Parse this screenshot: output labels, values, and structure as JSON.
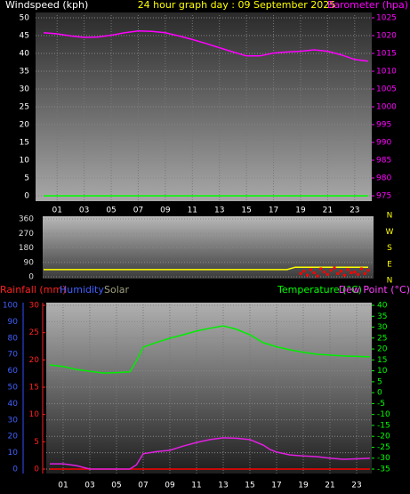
{
  "chart_data": [
    {
      "type": "line",
      "title": "24 hour graph day : 09 September 2025",
      "y_label": "Windspeed (kph)",
      "y2_label": "Barometer (hpa)",
      "xlim": [
        0,
        24
      ],
      "xticks": [
        {
          "value": 1,
          "label": "01"
        },
        {
          "value": 3,
          "label": "03"
        },
        {
          "value": 5,
          "label": "05"
        },
        {
          "value": 7,
          "label": "07"
        },
        {
          "value": 9,
          "label": "09"
        },
        {
          "value": 11,
          "label": "11"
        },
        {
          "value": 13,
          "label": "13"
        },
        {
          "value": 15,
          "label": "15"
        },
        {
          "value": 17,
          "label": "17"
        },
        {
          "value": 19,
          "label": "19"
        },
        {
          "value": 21,
          "label": "21"
        },
        {
          "value": 23,
          "label": "23"
        }
      ],
      "ylim": [
        0,
        50
      ],
      "yticks": [
        0,
        5,
        10,
        15,
        20,
        25,
        30,
        35,
        40,
        45,
        50
      ],
      "y2lim": [
        975,
        1025
      ],
      "y2ticks": [
        975,
        980,
        985,
        990,
        995,
        1000,
        1005,
        1010,
        1015,
        1020,
        1025
      ],
      "series": [
        {
          "color": "#00ff00",
          "x": [
            0,
            2,
            4,
            6,
            8,
            10,
            12,
            14,
            16,
            18,
            20,
            22,
            24
          ],
          "values": [
            0,
            0,
            0,
            0,
            0,
            0,
            0,
            0,
            0,
            0,
            0,
            0,
            0
          ]
        },
        {
          "color": "#ff00ff",
          "axis": "y2",
          "x": [
            0,
            1,
            2,
            3,
            4,
            5,
            6,
            7,
            8,
            9,
            10,
            11,
            12,
            13,
            14,
            15,
            16,
            17,
            18,
            19,
            20,
            21,
            22,
            23,
            24
          ],
          "values": [
            1020.8,
            1020.5,
            1019.9,
            1019.5,
            1019.6,
            1020.1,
            1020.8,
            1021.3,
            1021.2,
            1020.8,
            1019.9,
            1018.9,
            1017.8,
            1016.6,
            1015.4,
            1014.3,
            1014.3,
            1015.1,
            1015.4,
            1015.6,
            1016,
            1015.6,
            1014.6,
            1013.3,
            1012.8
          ]
        }
      ]
    },
    {
      "type": "line",
      "compass_labels": [
        "N",
        "W",
        "S",
        "E",
        "N"
      ],
      "xlim": [
        0,
        24
      ],
      "ylim": [
        0,
        360
      ],
      "yticks": [
        0,
        90,
        180,
        270,
        360
      ],
      "series": [
        {
          "color": "#ffff00",
          "x": [
            0,
            3,
            6,
            9,
            12,
            15,
            18,
            18.6,
            19,
            21,
            24
          ],
          "values": [
            45,
            45,
            45,
            45,
            45,
            45,
            45,
            60,
            60,
            60,
            60
          ]
        },
        {
          "color": "#ff0000",
          "style": "points",
          "x": [
            19,
            19.25,
            19.5,
            19.75,
            20,
            20.25,
            20.5,
            20.75,
            21,
            21.25,
            21.5,
            21.75,
            22,
            22.25,
            22.5,
            22.75,
            23,
            23.25,
            23.5,
            23.75,
            24
          ],
          "values": [
            20,
            35,
            10,
            45,
            25,
            5,
            50,
            30,
            15,
            40,
            55,
            20,
            35,
            10,
            45,
            25,
            30,
            15,
            50,
            20,
            40
          ]
        }
      ]
    },
    {
      "type": "line",
      "rain_label": "Rainfall (mm)",
      "humidity_label": "Humidity",
      "solar_label": "Solar",
      "temp_label": "Temperature (°C)",
      "dew_label": "Dew Point (°C)",
      "xlim": [
        0,
        24
      ],
      "xticks": [
        {
          "value": 1,
          "label": "01"
        },
        {
          "value": 3,
          "label": "03"
        },
        {
          "value": 5,
          "label": "05"
        },
        {
          "value": 7,
          "label": "07"
        },
        {
          "value": 9,
          "label": "09"
        },
        {
          "value": 11,
          "label": "11"
        },
        {
          "value": 13,
          "label": "13"
        },
        {
          "value": 15,
          "label": "15"
        },
        {
          "value": 17,
          "label": "17"
        },
        {
          "value": 19,
          "label": "19"
        },
        {
          "value": 21,
          "label": "21"
        },
        {
          "value": 23,
          "label": "23"
        }
      ],
      "ylim": [
        0,
        100
      ],
      "yticks": [
        0,
        10,
        20,
        30,
        40,
        50,
        60,
        70,
        80,
        90,
        100
      ],
      "y3lim": [
        0,
        30
      ],
      "y3ticks": [
        0,
        5,
        10,
        15,
        20,
        25,
        30
      ],
      "y2lim": [
        -35,
        40
      ],
      "y2ticks": [
        -35,
        -30,
        -25,
        -20,
        -15,
        -10,
        -5,
        0,
        5,
        10,
        15,
        20,
        25,
        30,
        35,
        40
      ],
      "series": [
        {
          "color": "#ff0000",
          "axis": "y3",
          "x": [
            0,
            4,
            8,
            12,
            16,
            20,
            24
          ],
          "values": [
            0,
            0,
            0,
            0,
            0,
            0,
            0
          ]
        },
        {
          "color": "#00ee00",
          "axis": "y2",
          "x": [
            0,
            1,
            2,
            3,
            4,
            5,
            6,
            6.5,
            7,
            8,
            9,
            10,
            11,
            12,
            13,
            14,
            15,
            16,
            17,
            18,
            19,
            20,
            21,
            22,
            23,
            24
          ],
          "values": [
            12.7,
            12,
            10.6,
            9.8,
            9,
            9.2,
            9.5,
            14.7,
            20.8,
            23,
            24.9,
            26.5,
            28.2,
            29.5,
            30.6,
            29,
            26.5,
            22.9,
            21,
            19.6,
            18.5,
            17.6,
            17.2,
            16.8,
            16.6,
            16.4
          ]
        },
        {
          "color": "#e020e0",
          "axis": "y2",
          "x": [
            0,
            1,
            2,
            3,
            4,
            5,
            6,
            6.5,
            7,
            8,
            9,
            10,
            11,
            12,
            13,
            14,
            15,
            16,
            16.5,
            17,
            18,
            19,
            20,
            21,
            22,
            23,
            24
          ],
          "values": [
            -32.6,
            -32.6,
            -33.4,
            -35,
            -35,
            -35,
            -35,
            -33,
            -28,
            -27,
            -26.4,
            -24.5,
            -22.8,
            -21.5,
            -20.7,
            -20.9,
            -21.5,
            -24,
            -26,
            -27.2,
            -28.5,
            -29,
            -29.3,
            -30,
            -30.5,
            -30.3,
            -30
          ]
        }
      ]
    }
  ]
}
